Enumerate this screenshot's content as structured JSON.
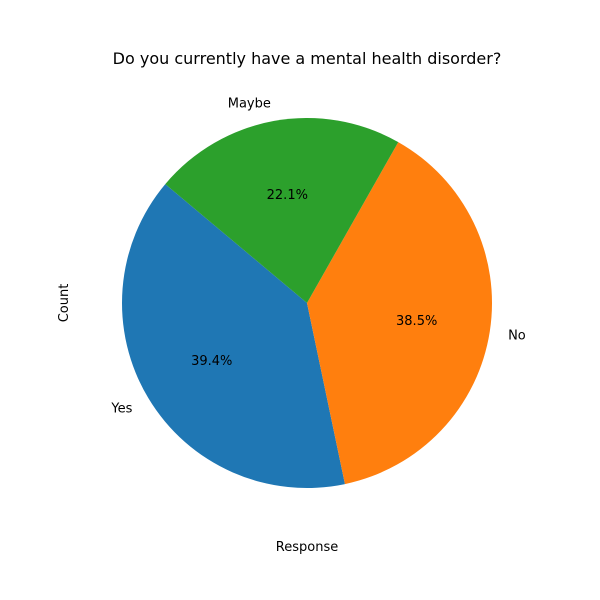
{
  "chart_data": {
    "type": "pie",
    "title": "Do you currently have a mental health disorder?",
    "xlabel": "Response",
    "ylabel": "Count",
    "categories": [
      "Yes",
      "No",
      "Maybe"
    ],
    "values": [
      39.4,
      38.5,
      22.1
    ],
    "percent_labels": [
      "39.4%",
      "38.5%",
      "22.1%"
    ],
    "colors": [
      "#1f77b4",
      "#ff7f0e",
      "#2ca02c"
    ],
    "start_angle_deg": 140,
    "direction": "counterclockwise"
  }
}
